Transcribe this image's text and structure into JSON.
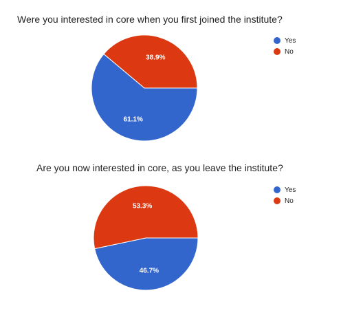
{
  "chart_data": [
    {
      "type": "pie",
      "title": "Were you interested in core when you first joined the institute?",
      "categories": [
        "Yes",
        "No"
      ],
      "values": [
        61.1,
        38.9
      ],
      "labels": [
        "61.1%",
        "38.9%"
      ],
      "colors": [
        "#3366cc",
        "#dc3912"
      ],
      "legend_position": "right"
    },
    {
      "type": "pie",
      "title": "Are you now interested in core, as you leave the institute?",
      "categories": [
        "Yes",
        "No"
      ],
      "values": [
        46.7,
        53.3
      ],
      "labels": [
        "46.7%",
        "53.3%"
      ],
      "colors": [
        "#3366cc",
        "#dc3912"
      ],
      "legend_position": "right"
    }
  ]
}
